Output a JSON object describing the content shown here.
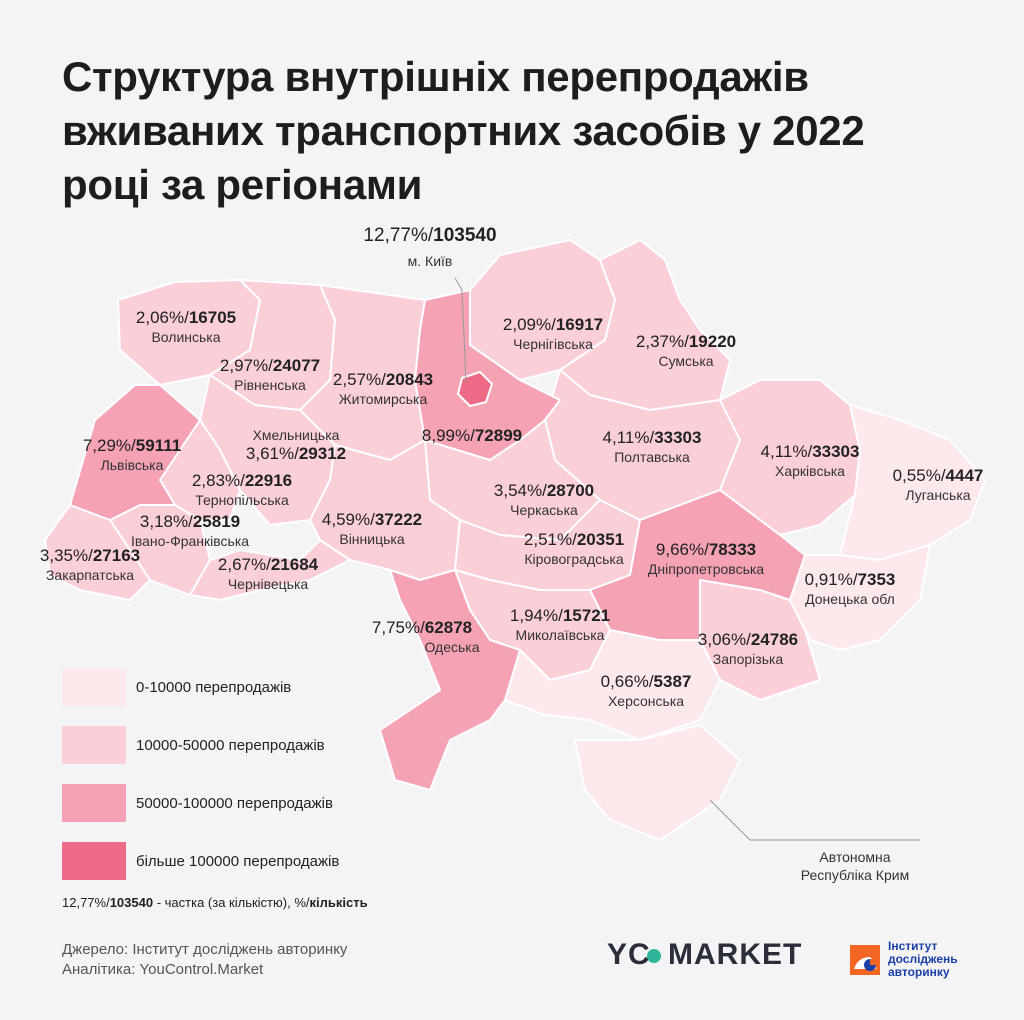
{
  "title": "Структура внутрішніх перепродажів вживаних транспортних засобів у 2022 році за регіонами",
  "colors": {
    "bg": "#f4f4f6",
    "tier1": "#fde8ec",
    "tier2": "#fbcfd8",
    "tier3": "#f5a3b4",
    "tier4": "#ef6a86",
    "border": "#ffffff"
  },
  "regions": [
    {
      "id": "kyiv-city",
      "pct": "12,77%/",
      "count": "103540",
      "name": "м. Київ"
    },
    {
      "id": "volyn",
      "pct": "2,06%/",
      "count": "16705",
      "name": "Волинська"
    },
    {
      "id": "rivne",
      "pct": "2,97%/",
      "count": "24077",
      "name": "Рівненська"
    },
    {
      "id": "zhytomyr",
      "pct": "2,57%/",
      "count": "20843",
      "name": "Житомирська"
    },
    {
      "id": "chernihiv",
      "pct": "2,09%/",
      "count": "16917",
      "name": "Чернігівська"
    },
    {
      "id": "sumy",
      "pct": "2,37%/",
      "count": "19220",
      "name": "Сумська"
    },
    {
      "id": "lviv",
      "pct": "7,29%/",
      "count": "59111",
      "name": "Львівська"
    },
    {
      "id": "khmelnytskyi",
      "pct": "3,61%/",
      "count": "29312",
      "name": "Хмельницька"
    },
    {
      "id": "kyiv-oblast",
      "pct": "8,99%/",
      "count": "72899",
      "name": ""
    },
    {
      "id": "poltava",
      "pct": "4,11%/",
      "count": "33303",
      "name": "Полтавська"
    },
    {
      "id": "kharkiv",
      "pct": "4,11%/",
      "count": "33303",
      "name": "Харківська"
    },
    {
      "id": "luhansk",
      "pct": "0,55%/",
      "count": "4447",
      "name": "Луганська"
    },
    {
      "id": "ternopil",
      "pct": "2,83%/",
      "count": "22916",
      "name": "Тернопільська"
    },
    {
      "id": "cherkasy",
      "pct": "3,54%/",
      "count": "28700",
      "name": "Черкаська"
    },
    {
      "id": "ivano-frankivsk",
      "pct": "3,18%/",
      "count": "25819",
      "name": "Івано-Франківська"
    },
    {
      "id": "vinnytsia",
      "pct": "4,59%/",
      "count": "37222",
      "name": "Вінницька"
    },
    {
      "id": "kirovohrad",
      "pct": "2,51%/",
      "count": "20351",
      "name": "Кіровоградська"
    },
    {
      "id": "dnipro",
      "pct": "9,66%/",
      "count": "78333",
      "name": "Дніпропетровська"
    },
    {
      "id": "zakarpattia",
      "pct": "3,35%/",
      "count": "27163",
      "name": "Закарпатська"
    },
    {
      "id": "chernivtsi",
      "pct": "2,67%/",
      "count": "21684",
      "name": "Чернівецька"
    },
    {
      "id": "donetsk",
      "pct": "0,91%/",
      "count": "7353",
      "name": "Донецька обл"
    },
    {
      "id": "odesa",
      "pct": "7,75%/",
      "count": "62878",
      "name": "Одеська"
    },
    {
      "id": "mykolaiv",
      "pct": "1,94%/",
      "count": "15721",
      "name": "Миколаївська"
    },
    {
      "id": "zaporizhzhia",
      "pct": "3,06%/",
      "count": "24786",
      "name": "Запорізька"
    },
    {
      "id": "kherson",
      "pct": "0,66%/",
      "count": "5387",
      "name": "Херсонська"
    }
  ],
  "crimea_label": "Автономна Республіка Крим",
  "legend": [
    {
      "label": "0-10000 перепродажів"
    },
    {
      "label": "10000-50000 перепродажів"
    },
    {
      "label": "50000-100000 перепродажів"
    },
    {
      "label": "більше 100000  перепродажів"
    }
  ],
  "note": {
    "pct": "12,77%/",
    "count": "103540",
    "text": " - частка (за кількістю), %/",
    "bold": "кількість"
  },
  "source": {
    "line1": "Джерело: Інститут досліджень авторинку",
    "line2": "Аналітика: YouControl.Market"
  },
  "logo_yc": {
    "left": "YC",
    "right": "MARKET"
  },
  "logo_inst": {
    "line1": "Інститут",
    "line2": "досліджень",
    "line3": "авторинку"
  }
}
